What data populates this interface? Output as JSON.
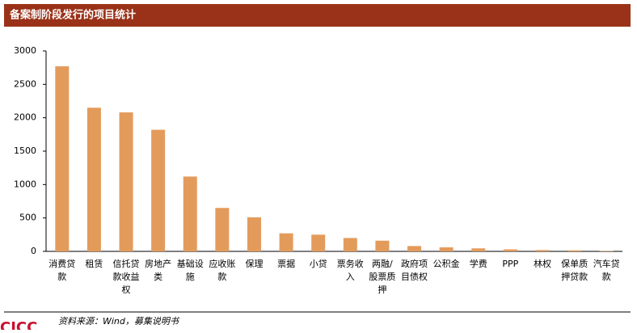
{
  "header": {
    "title": "备案制阶段发行的项目统计"
  },
  "chart_data": {
    "type": "bar",
    "categories": [
      "消费贷款",
      "租赁",
      "信托贷款收益权",
      "房地产类",
      "基础设施",
      "应收账款",
      "保理",
      "票据",
      "小贷",
      "票务收入",
      "两融/股票质押",
      "政府项目债权",
      "公积金",
      "学费",
      "PPP",
      "林权",
      "保单质押贷款",
      "汽车贷款"
    ],
    "values": [
      2770,
      2150,
      2080,
      1820,
      1120,
      650,
      510,
      270,
      250,
      200,
      160,
      80,
      60,
      45,
      30,
      20,
      15,
      5
    ],
    "color": "#e39b5c",
    "ylim": [
      0,
      3000
    ],
    "yticks": [
      0,
      500,
      1000,
      1500,
      2000,
      2500,
      3000
    ],
    "grid": false
  },
  "footer": {
    "source": "资料来源：Wind，募集说明书",
    "logo": "CICC"
  }
}
